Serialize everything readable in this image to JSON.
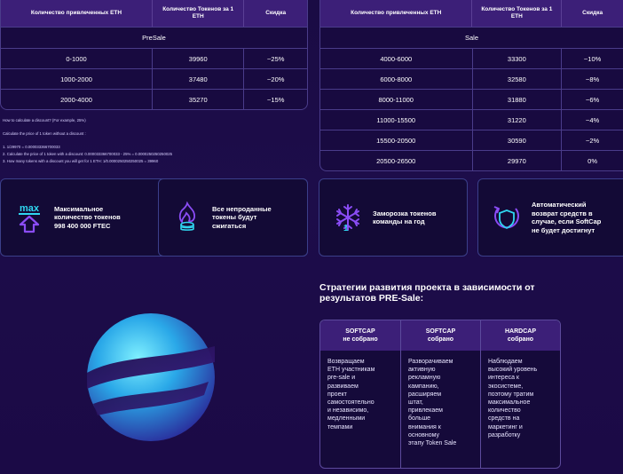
{
  "presale_table": {
    "headers": [
      "Количество привлеченных ETH",
      "Количество Токенов за 1 ETH",
      "Скидка"
    ],
    "section": "PreSale",
    "rows": [
      [
        "0-1000",
        "39960",
        "~25%"
      ],
      [
        "1000-2000",
        "37480",
        "~20%"
      ],
      [
        "2000-4000",
        "35270",
        "~15%"
      ]
    ]
  },
  "sale_table": {
    "headers": [
      "Количество привлеченных ETH",
      "Количество Токенов за 1 ETH",
      "Скидка"
    ],
    "section": "Sale",
    "rows": [
      [
        "4000-6000",
        "33300",
        "~10%"
      ],
      [
        "6000-8000",
        "32580",
        "~8%"
      ],
      [
        "8000-11000",
        "31880",
        "~6%"
      ],
      [
        "11000-15500",
        "31220",
        "~4%"
      ],
      [
        "15500-20500",
        "30590",
        "~2%"
      ],
      [
        "20500-26500",
        "29970",
        "0%"
      ]
    ]
  },
  "howto": {
    "q": "How to calculate a discount? (For example, 25%)",
    "l1": "Calculate the price of 1 token without a discount :",
    "s1": "1. 1/29970 = 0.000033366700033",
    "s2": "2. Calculate the price of 1 token with a discount: 0.000033366700033 - 25% = 0.0000250250250025",
    "s3": "3. How many tokens with a discount you will get for 1 ETH: 1/0.0000250250250025 = 39960"
  },
  "cards": [
    {
      "icon": "max-tokens-icon",
      "line1": "Максимальное",
      "line2": "количество токенов",
      "line3": "998 400 000 FTEC"
    },
    {
      "icon": "fire-coins-icon",
      "line1": "Все непроданные",
      "line2": "токены будут",
      "line3": "сжигаться"
    },
    {
      "icon": "snowflake-icon",
      "line1": "Заморозка токенов",
      "line2": "команды на год",
      "line3": ""
    },
    {
      "icon": "refund-shield-icon",
      "line1": "Автоматический",
      "line2": "возврат средств в",
      "line3": "случае, если SoftCap",
      "line4": "не будет достигнут"
    }
  ],
  "strategy": {
    "title_line1": "Стратегии развития проекта в зависимости от",
    "title_line2": "результатов PRE-Sale:",
    "cols": [
      {
        "h1": "SOFTCAP",
        "h2": "не собрано",
        "body": [
          "Возвращаем",
          "ETH участникам",
          "pre-sale и",
          "развиваем",
          "проект",
          "самостоятельно",
          "и независимо,",
          "медленными",
          "темпами"
        ]
      },
      {
        "h1": "SOFTCAP",
        "h2": "собрано",
        "body": [
          "Разворачиваем",
          "активную",
          "рекламную",
          "кампанию,",
          "расширяем",
          "штат,",
          "привлекаем",
          "больше",
          "внимания к",
          "основному",
          "этапу Token Sale"
        ]
      },
      {
        "h1": "HARDCAP",
        "h2": "собрано",
        "body": [
          "Наблюдаем",
          "высокий уровень",
          "интереса к",
          "экосистеме,",
          "поэтому тратим",
          "максимальное",
          "количество",
          "средств на",
          "маркетинг и",
          "разработку"
        ]
      }
    ]
  },
  "colors": {
    "accent_cyan": "#2fd6f0",
    "accent_purple": "#7a3cf0",
    "header_purple": "#3c1f78"
  }
}
